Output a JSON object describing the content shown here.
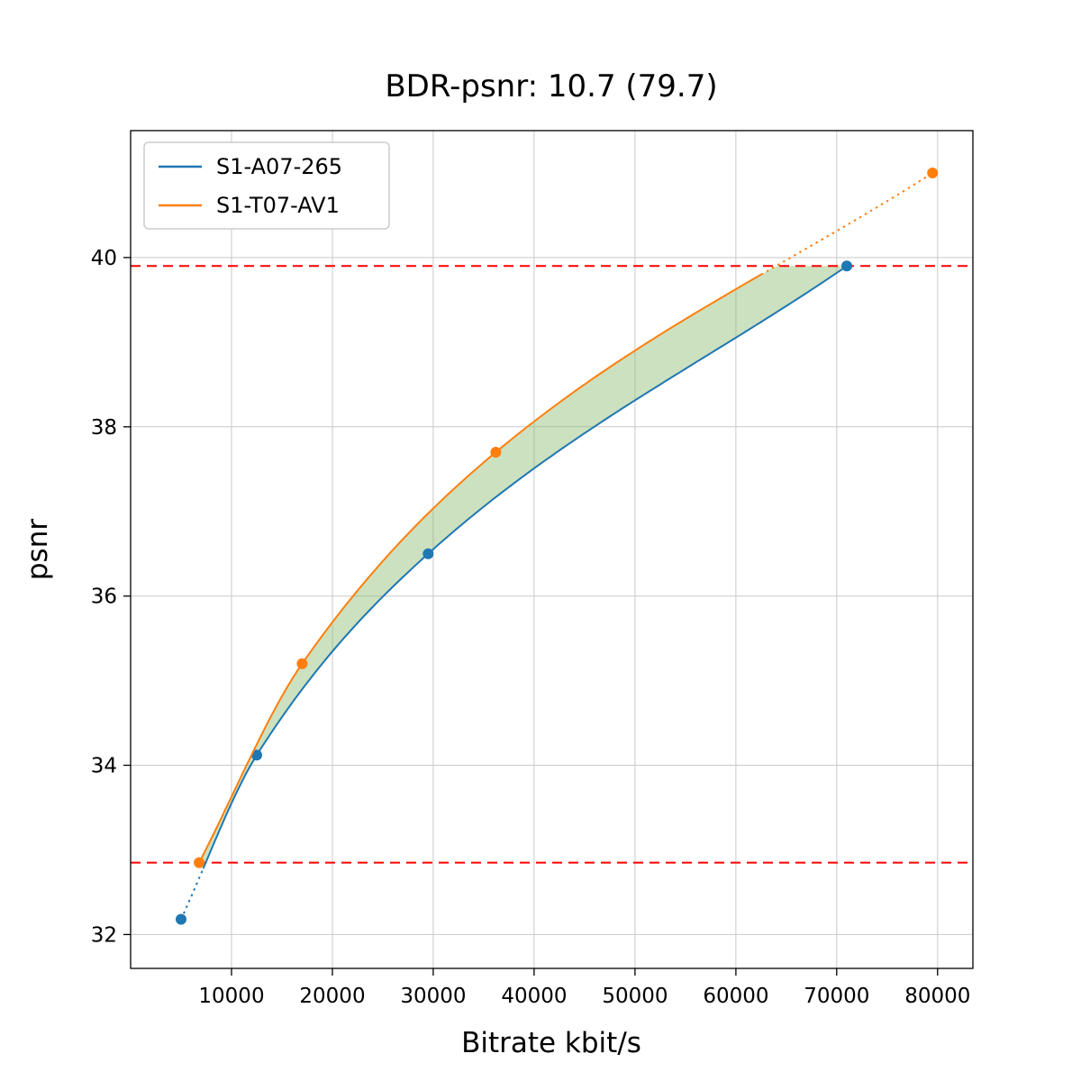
{
  "title": "BDR-psnr: 10.7 (79.7)",
  "chart_data": {
    "type": "line",
    "title": "BDR-psnr: 10.7 (79.7)",
    "xlabel": "Bitrate kbit/s",
    "ylabel": "psnr",
    "xlim": [
      0,
      83500
    ],
    "ylim": [
      31.6,
      41.5
    ],
    "x_ticks": [
      10000,
      20000,
      30000,
      40000,
      50000,
      60000,
      70000,
      80000
    ],
    "y_ticks": [
      32,
      34,
      36,
      38,
      40
    ],
    "grid": true,
    "legend_position": "upper-left",
    "series": [
      {
        "name": "S1-A07-265",
        "color": "#1f77b4",
        "points": [
          [
            5000,
            32.18
          ],
          [
            12500,
            34.12
          ],
          [
            29500,
            36.5
          ],
          [
            71000,
            39.9
          ]
        ],
        "solid_x_range": [
          7200,
          71000
        ]
      },
      {
        "name": "S1-T07-AV1",
        "color": "#ff7f0e",
        "points": [
          [
            6800,
            32.85
          ],
          [
            17000,
            35.2
          ],
          [
            36200,
            37.7
          ],
          [
            79500,
            41.0
          ]
        ],
        "solid_x_range": [
          6800,
          62500
        ]
      }
    ],
    "reference_lines": [
      {
        "y": 39.9,
        "color": "red",
        "style": "dashed"
      },
      {
        "y": 32.85,
        "color": "red",
        "style": "dashed"
      }
    ],
    "fill_between": {
      "x_range": [
        6800,
        71000
      ],
      "upper_clip": 39.9,
      "lower_clip": 32.85,
      "color": "#8fbc72",
      "opacity": 0.45
    }
  }
}
